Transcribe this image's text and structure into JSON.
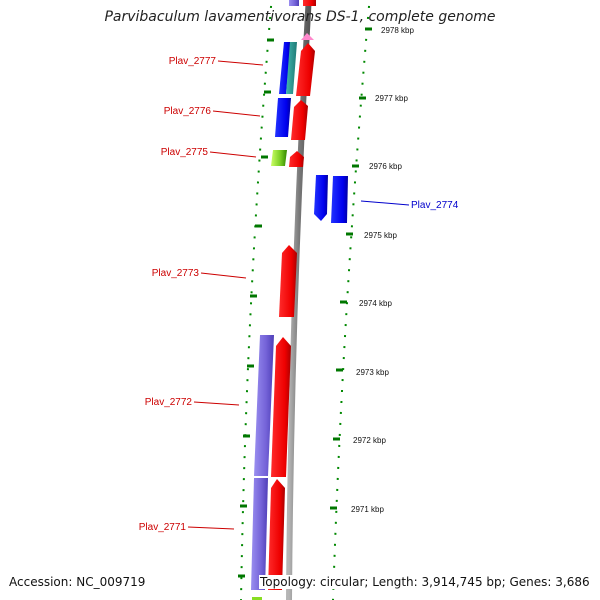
{
  "title": "Parvibaculum lavamentivorans DS-1, complete genome",
  "footer": {
    "accession": "Accession: NC_009719",
    "topology": "Topology: circular; Length: 3,914,745 bp; Genes: 3,686"
  },
  "kbp_ticks": [
    {
      "label": "2978 kbp"
    },
    {
      "label": "2977 kbp"
    },
    {
      "label": "2976 kbp"
    },
    {
      "label": "2975 kbp"
    },
    {
      "label": "2974 kbp"
    },
    {
      "label": "2973 kbp"
    },
    {
      "label": "2972 kbp"
    },
    {
      "label": "2971 kbp"
    }
  ],
  "genes": [
    {
      "label": "Plav_2777",
      "color": "#cc0000"
    },
    {
      "label": "Plav_2776",
      "color": "#cc0000"
    },
    {
      "label": "Plav_2775",
      "color": "#cc0000"
    },
    {
      "label": "Plav_2774",
      "color": "#0000cc"
    },
    {
      "label": "Plav_2773",
      "color": "#cc0000"
    },
    {
      "label": "Plav_2772",
      "color": "#cc0000"
    },
    {
      "label": "Plav_2771",
      "color": "#cc0000"
    }
  ],
  "colors": {
    "cds": "#ff0000",
    "gene": "#0000ff",
    "misc": "#7f6fd8",
    "pink_feature": "#ff88cc",
    "green_feature": "#88dd22",
    "backbone": "#888888",
    "tick": "#008800"
  }
}
